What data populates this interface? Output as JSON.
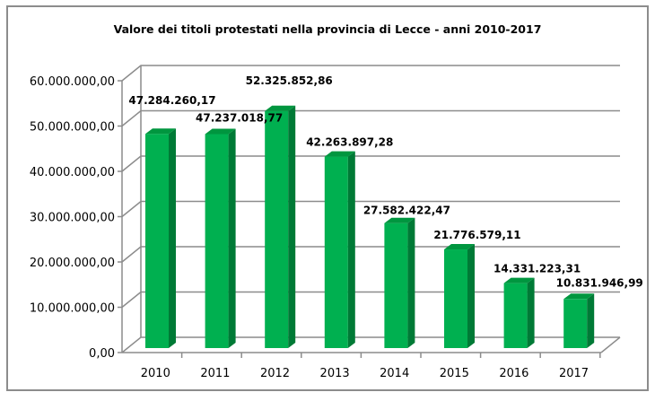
{
  "chart_data": {
    "type": "bar",
    "title": "Valore dei titoli protestati nella provincia di Lecce - anni 2010-2017",
    "xlabel": "",
    "ylabel": "",
    "categories": [
      "2010",
      "2011",
      "2012",
      "2013",
      "2014",
      "2015",
      "2016",
      "2017"
    ],
    "values": [
      47284260.17,
      47237018.77,
      52325852.86,
      42263897.28,
      27582422.47,
      21776579.11,
      14331223.31,
      10831946.99
    ],
    "data_labels": [
      "47.284.260,17",
      "47.237.018,77",
      "52.325.852,86",
      "42.263.897,28",
      "27.582.422,47",
      "21.776.579,11",
      "14.331.223,31",
      "10.831.946,99"
    ],
    "ylim": [
      0,
      60000000
    ],
    "y_ticks": [
      0,
      10000000,
      20000000,
      30000000,
      40000000,
      50000000,
      60000000
    ],
    "y_tick_labels": [
      "0,00",
      "10.000.000,00",
      "20.000.000,00",
      "30.000.000,00",
      "40.000.000,00",
      "50.000.000,00",
      "60.000.000,00"
    ],
    "grid": true,
    "legend": "none",
    "style": "3d-column",
    "colors": {
      "bar_front": "#00b050",
      "bar_side": "#007a36",
      "bar_top": "#00963f",
      "grid": "#8c8c8c"
    }
  }
}
